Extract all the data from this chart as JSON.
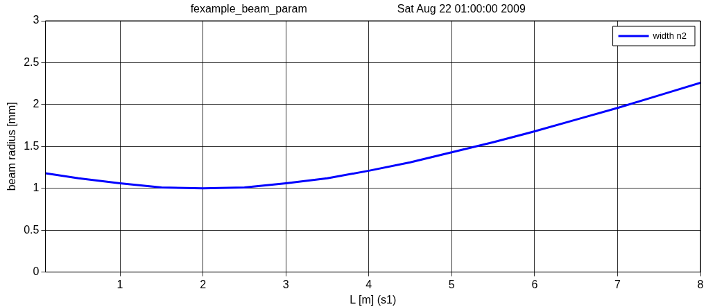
{
  "chart_data": {
    "type": "line",
    "title": "fexample_beam_param",
    "subtitle": "Sat Aug 22 01:00:00 2009",
    "xlabel": "L [m] (s1)",
    "ylabel": "beam radius [mm]",
    "x": [
      0.1,
      0.5,
      1,
      1.5,
      2,
      2.5,
      3,
      3.5,
      4,
      4.5,
      5,
      5.5,
      6,
      6.5,
      7,
      7.5,
      8
    ],
    "series": [
      {
        "name": "width n2",
        "color": "#0000ff",
        "values": [
          1.18,
          1.12,
          1.06,
          1.01,
          1.0,
          1.01,
          1.06,
          1.12,
          1.21,
          1.31,
          1.43,
          1.55,
          1.68,
          1.82,
          1.96,
          2.11,
          2.26
        ]
      }
    ],
    "xlim": [
      0.1,
      8
    ],
    "xticks": [
      1,
      2,
      3,
      4,
      5,
      6,
      7,
      8
    ],
    "ylim": [
      0,
      3
    ],
    "yticks": [
      0,
      0.5,
      1,
      1.5,
      2,
      2.5,
      3
    ],
    "grid": true,
    "legend": "top right",
    "marker": "none",
    "line_style": "solid"
  }
}
